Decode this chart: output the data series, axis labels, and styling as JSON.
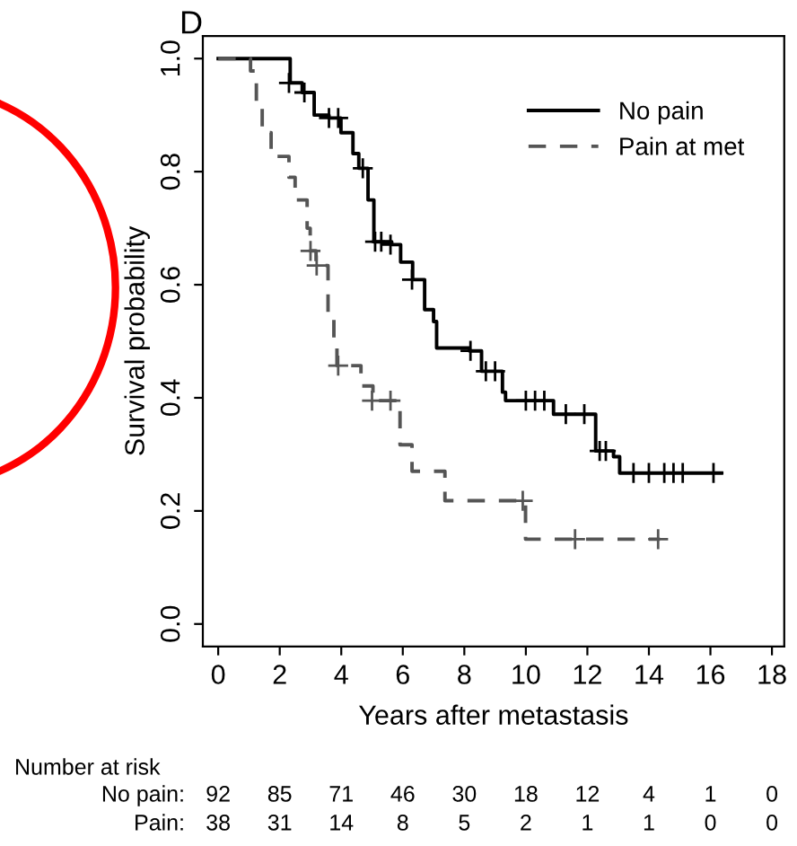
{
  "chart_data": {
    "type": "step",
    "xlabel": "Years after metastasis",
    "ylabel": "Survival probability",
    "xlim": [
      -0.5,
      18.4
    ],
    "ylim": [
      -0.04,
      1.04
    ],
    "xticks": [
      0,
      2,
      4,
      6,
      8,
      10,
      12,
      14,
      16,
      18
    ],
    "yticks": [
      {
        "value": 0,
        "label": "0.0"
      },
      {
        "value": 0.2,
        "label": "0.2"
      },
      {
        "value": 0.4,
        "label": "0.4"
      },
      {
        "value": 0.6,
        "label": "0.6"
      },
      {
        "value": 0.8,
        "label": "0.8"
      },
      {
        "value": 1,
        "label": "1.0"
      }
    ],
    "grid": false,
    "legend": "top right",
    "series": [
      {
        "name": "No pain",
        "color": "#000000",
        "line_style": "solid",
        "x": [
          0,
          1.66,
          2.34,
          2.73,
          3.12,
          3.6,
          3.99,
          4.38,
          4.57,
          4.87,
          5.06,
          5.64,
          5.93,
          6.32,
          6.71,
          7.0,
          7.1,
          8.17,
          8.56,
          9.24,
          9.34,
          10.9,
          12.27,
          12.85,
          13.05,
          16.36
        ],
        "values": [
          1.0,
          1.0,
          0.957,
          0.94,
          0.9,
          0.895,
          0.869,
          0.832,
          0.806,
          0.75,
          0.676,
          0.671,
          0.64,
          0.609,
          0.556,
          0.535,
          0.488,
          0.483,
          0.447,
          0.41,
          0.395,
          0.371,
          0.306,
          0.296,
          0.267,
          0.267
        ]
      },
      {
        "name": "Pain at met",
        "color": "#555555",
        "line_style": "dashed",
        "x": [
          0,
          1.05,
          1.24,
          1.43,
          1.72,
          2.3,
          2.5,
          2.89,
          2.99,
          3.18,
          3.57,
          3.76,
          3.86,
          4.64,
          5.03,
          5.91,
          6.3,
          7.37,
          9.99,
          14.36
        ],
        "values": [
          1.0,
          0.978,
          0.921,
          0.869,
          0.827,
          0.79,
          0.75,
          0.7,
          0.66,
          0.634,
          0.551,
          0.494,
          0.457,
          0.421,
          0.395,
          0.317,
          0.27,
          0.218,
          0.15,
          0.15
        ]
      },
      {
        "type": "scatter",
        "marker": "cross",
        "color": "#000000",
        "x": [
          2.3,
          2.8,
          3.6,
          3.9,
          4.7,
          5.1,
          5.3,
          5.6,
          6.3,
          8.2,
          8.7,
          9.0,
          10.0,
          10.3,
          10.6,
          11.3,
          11.9,
          12.4,
          12.6,
          13.5,
          14.0,
          14.5,
          14.8,
          15.1,
          16.1
        ],
        "values": [
          0.957,
          0.94,
          0.895,
          0.895,
          0.806,
          0.676,
          0.676,
          0.671,
          0.609,
          0.483,
          0.447,
          0.447,
          0.395,
          0.395,
          0.395,
          0.371,
          0.371,
          0.306,
          0.306,
          0.267,
          0.267,
          0.267,
          0.267,
          0.267,
          0.267
        ]
      },
      {
        "type": "scatter",
        "marker": "cross",
        "color": "#555555",
        "x": [
          3.0,
          3.2,
          3.9,
          5.0,
          5.6,
          9.9,
          11.6,
          14.3
        ],
        "values": [
          0.66,
          0.634,
          0.457,
          0.395,
          0.395,
          0.218,
          0.15,
          0.15
        ]
      }
    ],
    "annotations": [
      "D",
      "Number at risk",
      "No pain:",
      "92",
      "85",
      "71",
      "46",
      "30",
      "18",
      "12",
      "4",
      "1",
      "0",
      "Pain:",
      "38",
      "31",
      "14",
      "8",
      "5",
      "2",
      "1",
      "1",
      "0",
      "0"
    ]
  }
}
